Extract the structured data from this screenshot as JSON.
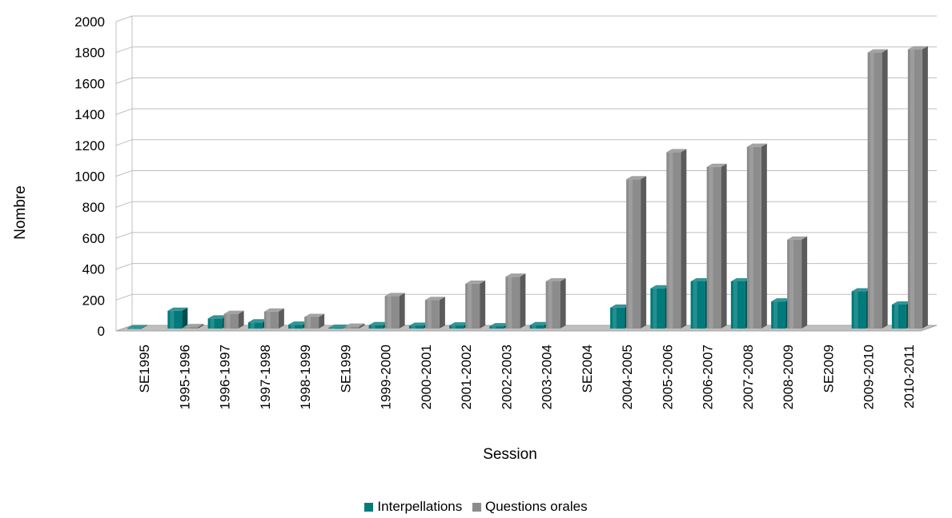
{
  "chart_data": {
    "type": "bar",
    "title": "",
    "xlabel": "Session",
    "ylabel": "Nombre",
    "ylim": [
      0,
      2000
    ],
    "yticks": [
      0,
      200,
      400,
      600,
      800,
      1000,
      1200,
      1400,
      1600,
      1800,
      2000
    ],
    "grid": true,
    "legend_position": "bottom",
    "categories": [
      "SE1995",
      "1995-1996",
      "1996-1997",
      "1997-1998",
      "1998-1999",
      "SE1999",
      "1999-2000",
      "2000-2001",
      "2001-2002",
      "2002-2003",
      "2003-2004",
      "SE2004",
      "2004-2005",
      "2005-2006",
      "2006-2007",
      "2007-2008",
      "2008-2009",
      "SE2009",
      "2009-2010",
      "2010-2011"
    ],
    "series": [
      {
        "name": "Interpellations",
        "color": "#007a7a",
        "values": [
          3,
          115,
          65,
          40,
          25,
          5,
          22,
          18,
          20,
          15,
          22,
          0,
          135,
          260,
          305,
          305,
          175,
          0,
          240,
          155
        ]
      },
      {
        "name": "Questions orales",
        "color": "#8c8c8c",
        "values": [
          0,
          10,
          95,
          110,
          75,
          12,
          210,
          185,
          290,
          335,
          305,
          0,
          965,
          1140,
          1045,
          1175,
          575,
          0,
          1785,
          1805
        ]
      }
    ]
  }
}
